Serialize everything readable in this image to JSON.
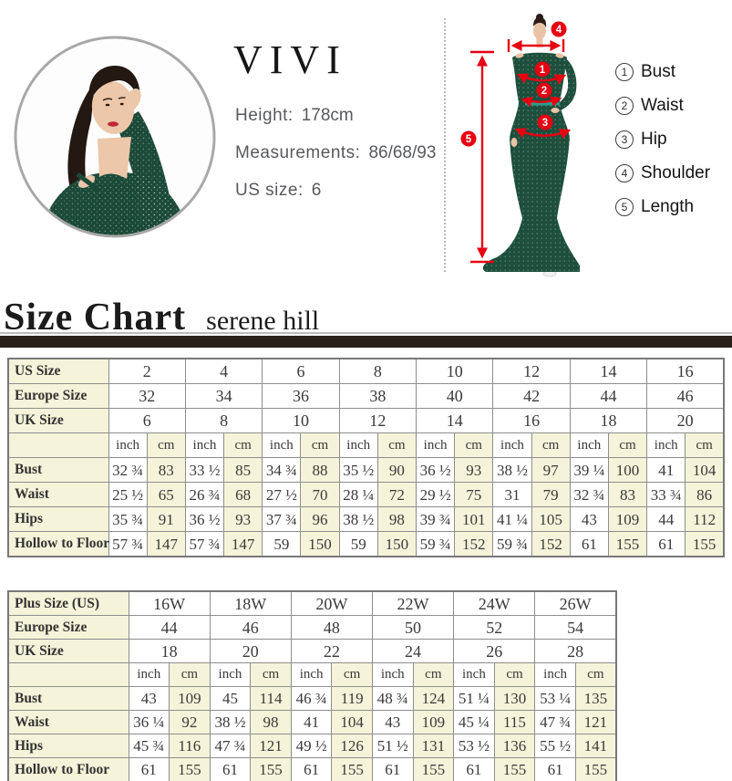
{
  "model_info": {
    "brand": "VIVI",
    "height_label": "Height:",
    "height_value": "178cm",
    "measurements_label": "Measurements:",
    "measurements_value": "86/68/93",
    "us_size_label": "US size:",
    "us_size_value": "6"
  },
  "measure_guide": {
    "items": [
      {
        "num": "1",
        "label": "Bust"
      },
      {
        "num": "2",
        "label": "Waist"
      },
      {
        "num": "3",
        "label": "Hip"
      },
      {
        "num": "4",
        "label": "Shoulder"
      },
      {
        "num": "5",
        "label": "Length"
      }
    ]
  },
  "size_chart": {
    "title": "Size Chart",
    "subtitle": "serene hill",
    "unit_inch": "inch",
    "unit_cm": "cm",
    "colors": {
      "accent_red": "#e60012",
      "cream_cell": "#f5f3d9",
      "dark_bar": "#2a211b",
      "dress_green": "#1d4f3c",
      "table_border": "#8e8e8e"
    },
    "table1": {
      "size_rows": [
        {
          "label": "US Size",
          "values": [
            "2",
            "4",
            "6",
            "8",
            "10",
            "12",
            "14",
            "16"
          ]
        },
        {
          "label": "Europe Size",
          "values": [
            "32",
            "34",
            "36",
            "38",
            "40",
            "42",
            "44",
            "46"
          ]
        },
        {
          "label": "UK Size",
          "values": [
            "6",
            "8",
            "10",
            "12",
            "14",
            "16",
            "18",
            "20"
          ]
        }
      ],
      "measure_rows": [
        {
          "label": "Bust",
          "pairs": [
            [
              "32 ¾",
              "83"
            ],
            [
              "33 ½",
              "85"
            ],
            [
              "34 ¾",
              "88"
            ],
            [
              "35 ½",
              "90"
            ],
            [
              "36 ½",
              "93"
            ],
            [
              "38 ½",
              "97"
            ],
            [
              "39 ¼",
              "100"
            ],
            [
              "41",
              "104"
            ]
          ]
        },
        {
          "label": "Waist",
          "pairs": [
            [
              "25 ½",
              "65"
            ],
            [
              "26 ¾",
              "68"
            ],
            [
              "27 ½",
              "70"
            ],
            [
              "28 ¼",
              "72"
            ],
            [
              "29 ½",
              "75"
            ],
            [
              "31",
              "79"
            ],
            [
              "32 ¾",
              "83"
            ],
            [
              "33 ¾",
              "86"
            ]
          ]
        },
        {
          "label": "Hips",
          "pairs": [
            [
              "35 ¾",
              "91"
            ],
            [
              "36 ½",
              "93"
            ],
            [
              "37 ¾",
              "96"
            ],
            [
              "38 ½",
              "98"
            ],
            [
              "39 ¾",
              "101"
            ],
            [
              "41 ¼",
              "105"
            ],
            [
              "43",
              "109"
            ],
            [
              "44",
              "112"
            ]
          ]
        },
        {
          "label": "Hollow to Floor",
          "pairs": [
            [
              "57 ¾",
              "147"
            ],
            [
              "57 ¾",
              "147"
            ],
            [
              "59",
              "150"
            ],
            [
              "59",
              "150"
            ],
            [
              "59 ¾",
              "152"
            ],
            [
              "59 ¾",
              "152"
            ],
            [
              "61",
              "155"
            ],
            [
              "61",
              "155"
            ]
          ]
        }
      ]
    },
    "table2": {
      "size_rows": [
        {
          "label": "Plus Size (US)",
          "values": [
            "16W",
            "18W",
            "20W",
            "22W",
            "24W",
            "26W"
          ]
        },
        {
          "label": "Europe Size",
          "values": [
            "44",
            "46",
            "48",
            "50",
            "52",
            "54"
          ]
        },
        {
          "label": "UK Size",
          "values": [
            "18",
            "20",
            "22",
            "24",
            "26",
            "28"
          ]
        }
      ],
      "measure_rows": [
        {
          "label": "Bust",
          "pairs": [
            [
              "43",
              "109"
            ],
            [
              "45",
              "114"
            ],
            [
              "46 ¾",
              "119"
            ],
            [
              "48 ¾",
              "124"
            ],
            [
              "51 ¼",
              "130"
            ],
            [
              "53 ¼",
              "135"
            ]
          ]
        },
        {
          "label": "Waist",
          "pairs": [
            [
              "36 ¼",
              "92"
            ],
            [
              "38 ½",
              "98"
            ],
            [
              "41",
              "104"
            ],
            [
              "43",
              "109"
            ],
            [
              "45 ¼",
              "115"
            ],
            [
              "47 ¾",
              "121"
            ]
          ]
        },
        {
          "label": "Hips",
          "pairs": [
            [
              "45 ¾",
              "116"
            ],
            [
              "47 ¾",
              "121"
            ],
            [
              "49 ½",
              "126"
            ],
            [
              "51 ½",
              "131"
            ],
            [
              "53 ½",
              "136"
            ],
            [
              "55 ½",
              "141"
            ]
          ]
        },
        {
          "label": "Hollow to Floor",
          "pairs": [
            [
              "61",
              "155"
            ],
            [
              "61",
              "155"
            ],
            [
              "61",
              "155"
            ],
            [
              "61",
              "155"
            ],
            [
              "61",
              "155"
            ],
            [
              "61",
              "155"
            ]
          ]
        }
      ]
    }
  }
}
